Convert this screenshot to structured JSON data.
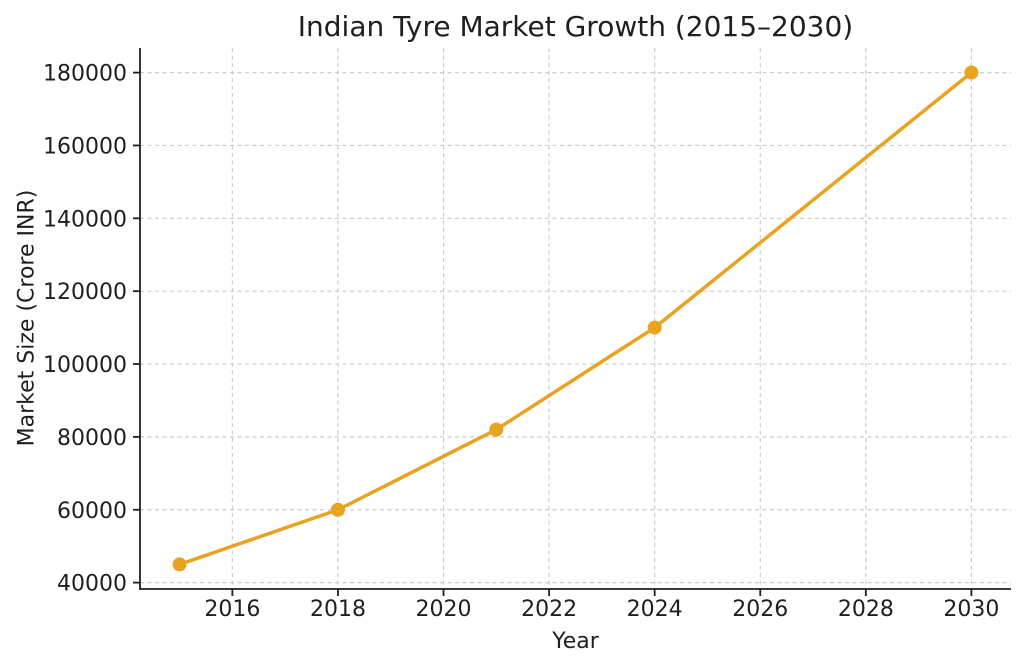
{
  "chart_data": {
    "type": "line",
    "title": "Indian Tyre Market Growth (2015–2030)",
    "xlabel": "Year",
    "ylabel": "Market Size (Crore INR)",
    "x": [
      2015,
      2018,
      2021,
      2024,
      2030
    ],
    "y": [
      45000,
      60000,
      82000,
      110000,
      180000
    ],
    "xlim": [
      2014.25,
      2030.75
    ],
    "ylim": [
      38250,
      186750
    ],
    "xticks": [
      2016,
      2018,
      2020,
      2022,
      2024,
      2026,
      2028,
      2030
    ],
    "yticks": [
      40000,
      60000,
      80000,
      100000,
      120000,
      140000,
      160000,
      180000
    ],
    "grid": true,
    "legend": false,
    "marker": "circle",
    "colors": {
      "line": "#E8A320",
      "marker": "#E8A320",
      "grid": "#CCCCCC",
      "spine": "#1F1F1F",
      "text": "#1F1F1F",
      "background": "#FFFFFF"
    }
  }
}
